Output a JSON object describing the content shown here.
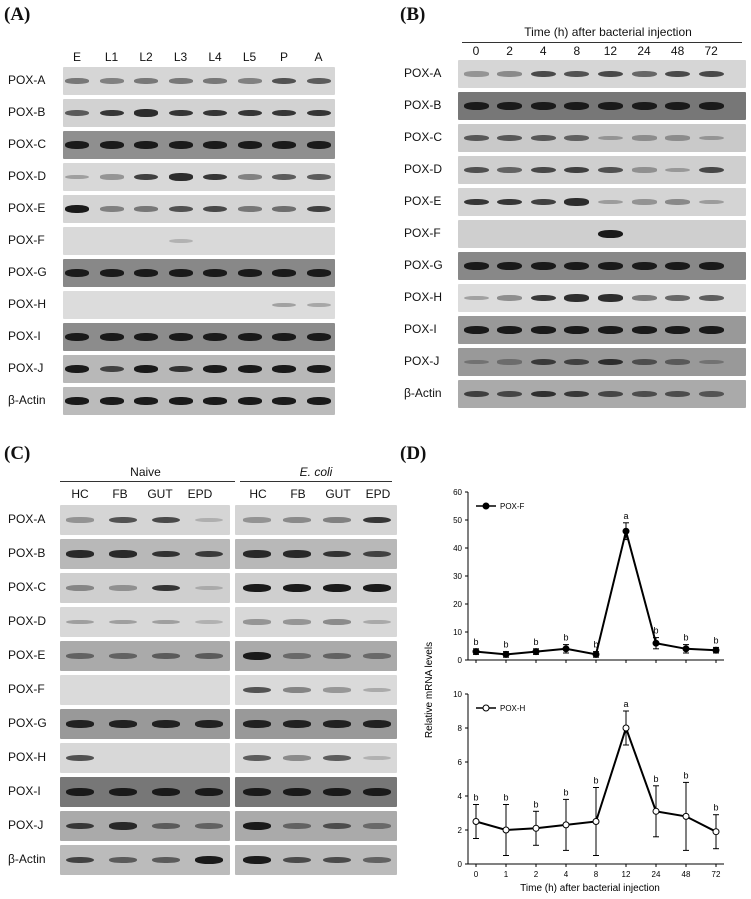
{
  "panelA": {
    "label": "(A)",
    "lanes": [
      "E",
      "L1",
      "L2",
      "L3",
      "L4",
      "L5",
      "P",
      "A"
    ],
    "genes": [
      "POX-A",
      "POX-B",
      "POX-C",
      "POX-D",
      "POX-E",
      "POX-F",
      "POX-G",
      "POX-H",
      "POX-I",
      "POX-J",
      "β-Actin"
    ]
  },
  "panelB": {
    "label": "(B)",
    "header": "Time (h) after bacterial injection",
    "lanes": [
      "0",
      "2",
      "4",
      "8",
      "12",
      "24",
      "48",
      "72"
    ],
    "genes": [
      "POX-A",
      "POX-B",
      "POX-C",
      "POX-D",
      "POX-E",
      "POX-F",
      "POX-G",
      "POX-H",
      "POX-I",
      "POX-J",
      "β-Actin"
    ]
  },
  "panelC": {
    "label": "(C)",
    "group1": "Naive",
    "group2": "E. coli",
    "lanes": [
      "HC",
      "FB",
      "GUT",
      "EPD"
    ],
    "genes": [
      "POX-A",
      "POX-B",
      "POX-C",
      "POX-D",
      "POX-E",
      "POX-F",
      "POX-G",
      "POX-H",
      "POX-I",
      "POX-J",
      "β-Actin"
    ]
  },
  "panelD": {
    "label": "(D)",
    "ylabel": "Relative mRNA levels",
    "xlabel": "Time (h) after bacterial injection"
  },
  "chart_data": [
    {
      "type": "line",
      "series": [
        {
          "name": "POX-F",
          "values": [
            3,
            2,
            3,
            4,
            2,
            46,
            6,
            4,
            3.5
          ],
          "errors": [
            1,
            1,
            1,
            1.5,
            1,
            3,
            2,
            1.5,
            1
          ],
          "letters": [
            "b",
            "b",
            "b",
            "b",
            "b",
            "a",
            "b",
            "b",
            "b"
          ]
        }
      ],
      "x": [
        "0",
        "1",
        "2",
        "4",
        "8",
        "12",
        "24",
        "48",
        "72"
      ],
      "ylim": [
        0,
        60
      ],
      "yticks": [
        0,
        10,
        20,
        30,
        40,
        50,
        60
      ],
      "ylabel": "Relative mRNA levels",
      "marker": "filled-circle",
      "legend": "top-left"
    },
    {
      "type": "line",
      "series": [
        {
          "name": "POX-H",
          "values": [
            2.5,
            2,
            2.1,
            2.3,
            2.5,
            8,
            3.1,
            2.8,
            1.9
          ],
          "errors": [
            1,
            1.5,
            1,
            1.5,
            2,
            1,
            1.5,
            2,
            1
          ],
          "letters": [
            "b",
            "b",
            "b",
            "b",
            "b",
            "a",
            "b",
            "b",
            "b"
          ]
        }
      ],
      "x": [
        "0",
        "1",
        "2",
        "4",
        "8",
        "12",
        "24",
        "48",
        "72"
      ],
      "ylim": [
        0,
        10
      ],
      "yticks": [
        0,
        2,
        4,
        6,
        8,
        10
      ],
      "xlabel": "Time (h) after bacterial injection",
      "marker": "open-circle",
      "legend": "top-left"
    }
  ]
}
